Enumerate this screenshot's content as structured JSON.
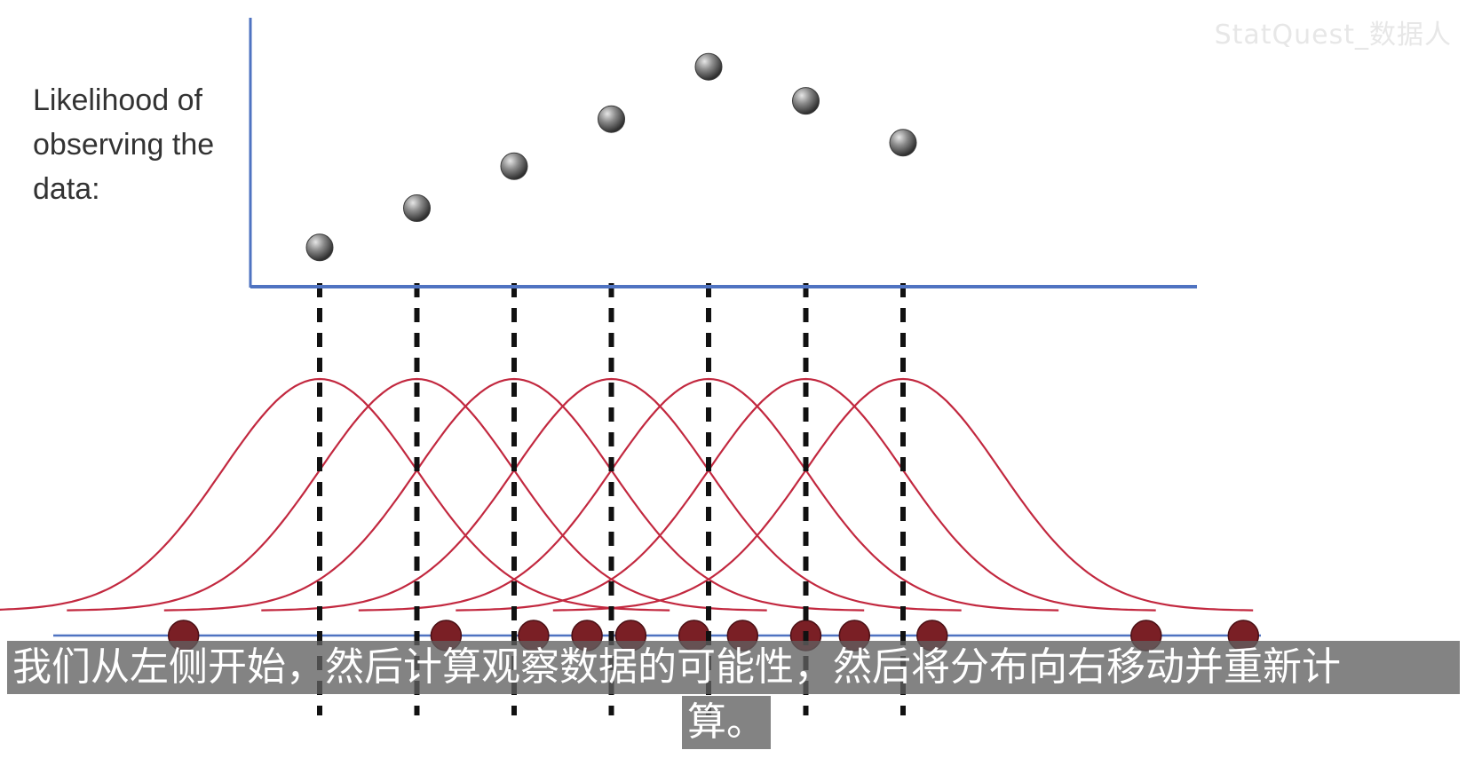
{
  "watermark": "StatQuest_数据人",
  "subtitles": {
    "line1": "我们从左侧开始，然后计算观察数据的可能性，然后将分布向右移动并重新计",
    "line2": "算。"
  },
  "colors": {
    "axis": "#4f73c1",
    "curve": "#c2283f",
    "point": "#707070",
    "dashed": "#111111",
    "data_dot": "#7a1f25"
  },
  "chart_data": {
    "type": "scatter",
    "title": "",
    "ylabel": "Likelihood of observing the data:",
    "xlabel": "",
    "grid": false,
    "likelihood_points": [
      {
        "position": 1,
        "value": 0.15
      },
      {
        "position": 2,
        "value": 0.3
      },
      {
        "position": 3,
        "value": 0.46
      },
      {
        "position": 4,
        "value": 0.64
      },
      {
        "position": 5,
        "value": 0.84
      },
      {
        "position": 6,
        "value": 0.71
      },
      {
        "position": 7,
        "value": 0.55
      }
    ],
    "ylim": [
      0,
      1
    ],
    "normal_curves": {
      "count": 7,
      "centers": [
        1,
        2,
        3,
        4,
        5,
        6,
        7
      ],
      "sd": 1.0
    },
    "observed_data": [
      -0.4,
      2.3,
      3.2,
      3.75,
      4.2,
      4.85,
      5.35,
      6.0,
      6.5,
      7.3,
      9.5,
      10.5
    ]
  }
}
